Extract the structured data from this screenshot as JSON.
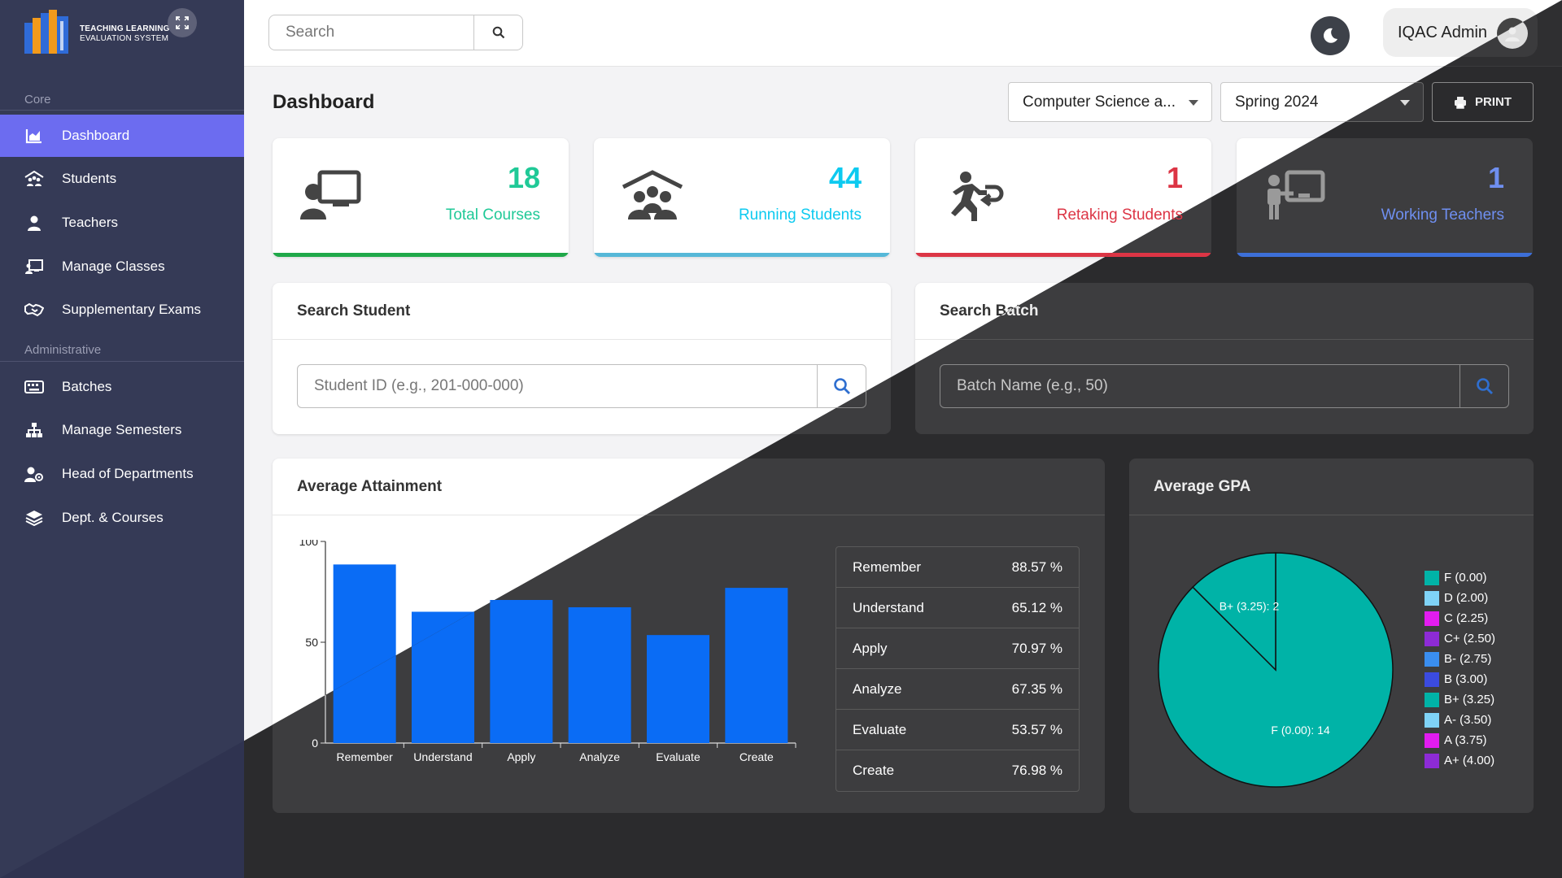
{
  "brand": {
    "line1": "TEACHING LEARNING",
    "line2": "EVALUATION SYSTEM"
  },
  "sidebar": {
    "sections": [
      {
        "label": "Core"
      },
      {
        "label": "Administrative"
      }
    ],
    "items": [
      {
        "label": "Dashboard",
        "icon": "chart-area-icon"
      },
      {
        "label": "Students",
        "icon": "school-icon"
      },
      {
        "label": "Teachers",
        "icon": "user-icon"
      },
      {
        "label": "Manage Classes",
        "icon": "chalkboard-icon"
      },
      {
        "label": "Supplementary Exams",
        "icon": "handshake-icon"
      },
      {
        "label": "Batches",
        "icon": "keyboard-icon"
      },
      {
        "label": "Manage Semesters",
        "icon": "sitemap-icon"
      },
      {
        "label": "Head of Departments",
        "icon": "user-cog-icon"
      },
      {
        "label": "Dept. & Courses",
        "icon": "layers-icon"
      }
    ]
  },
  "topbar": {
    "search_placeholder": "Search",
    "user_name": "IQAC Admin"
  },
  "page": {
    "title": "Dashboard",
    "department": "Computer Science a...",
    "semester": "Spring 2024",
    "print_label": "PRINT"
  },
  "stats": [
    {
      "value": "18",
      "label": "Total Courses",
      "color": "#20c997",
      "bar": "#1fa849"
    },
    {
      "value": "44",
      "label": "Running Students",
      "color": "#0dcaf0",
      "bar": "#56b8d8"
    },
    {
      "value": "1",
      "label": "Retaking Students",
      "color": "#dc3545",
      "bar": "#dc3545"
    },
    {
      "value": "1",
      "label": "Working Teachers",
      "color": "#6f8ff0",
      "bar": "#3d6fd8"
    }
  ],
  "search_student": {
    "title": "Search Student",
    "placeholder": "Student ID (e.g., 201-000-000)"
  },
  "search_batch": {
    "title": "Search Batch",
    "placeholder": "Batch Name (e.g., 50)"
  },
  "attainment": {
    "title": "Average Attainment",
    "rows": [
      {
        "label": "Remember",
        "value": "88.57 %"
      },
      {
        "label": "Understand",
        "value": "65.12 %"
      },
      {
        "label": "Apply",
        "value": "70.97 %"
      },
      {
        "label": "Analyze",
        "value": "67.35 %"
      },
      {
        "label": "Evaluate",
        "value": "53.57 %"
      },
      {
        "label": "Create",
        "value": "76.98 %"
      }
    ]
  },
  "gpa": {
    "title": "Average GPA",
    "legend": [
      {
        "label": "F (0.00)",
        "color": "#00b3a7"
      },
      {
        "label": "D (2.00)",
        "color": "#7fd3f7"
      },
      {
        "label": "C (2.25)",
        "color": "#e21cf0"
      },
      {
        "label": "C+ (2.50)",
        "color": "#8d2bd6"
      },
      {
        "label": "B- (2.75)",
        "color": "#3a8ef0"
      },
      {
        "label": "B (3.00)",
        "color": "#3b4be0"
      },
      {
        "label": "B+ (3.25)",
        "color": "#00b3a7"
      },
      {
        "label": "A- (3.50)",
        "color": "#7fd3f7"
      },
      {
        "label": "A (3.75)",
        "color": "#e21cf0"
      },
      {
        "label": "A+ (4.00)",
        "color": "#8d2bd6"
      }
    ]
  },
  "chart_data": [
    {
      "type": "bar",
      "categories": [
        "Remember",
        "Understand",
        "Apply",
        "Analyze",
        "Evaluate",
        "Create"
      ],
      "values": [
        88.57,
        65.12,
        70.97,
        67.35,
        53.57,
        76.98
      ],
      "ylim": [
        0,
        100
      ],
      "yticks": [
        "0",
        "50",
        "100"
      ],
      "color": "#0a6cf5"
    },
    {
      "type": "pie",
      "slices": [
        {
          "label": "F (0.00)",
          "value": 14,
          "text": "F (0.00): 14",
          "color": "#00b3a7"
        },
        {
          "label": "B+ (3.25)",
          "value": 2,
          "text": "B+ (3.25): 2",
          "color": "#00b3a7"
        }
      ]
    }
  ]
}
